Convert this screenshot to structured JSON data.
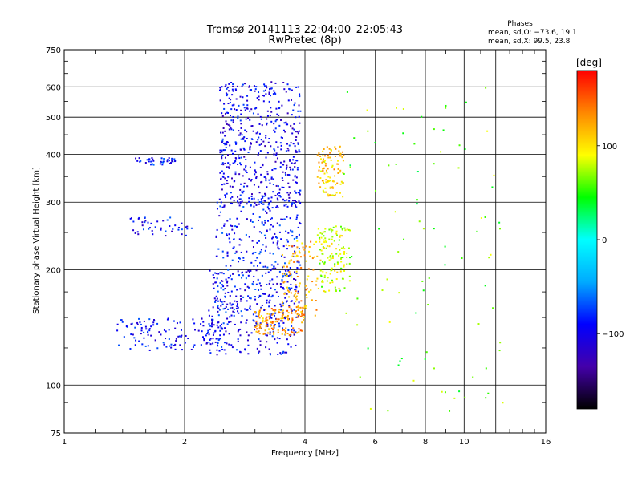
{
  "chart_data": {
    "type": "scatter",
    "title": "Tromsø 20141113 22:04:00–22:05:43",
    "subtitle": "RwPretec (8p)",
    "xlabel": "Frequency [MHz]",
    "ylabel": "Stationary phase Virtual Height [km]",
    "x_scale": "log",
    "y_scale": "log",
    "xlim": [
      1,
      16
    ],
    "ylim": [
      75,
      750
    ],
    "xticks": [
      1,
      2,
      4,
      6,
      8,
      10,
      16
    ],
    "xtick_labels": [
      "1",
      "2",
      "4",
      "6",
      "8",
      "10",
      "16"
    ],
    "xgrid": [
      2,
      4,
      6,
      8,
      10,
      12
    ],
    "yticks": [
      75,
      100,
      200,
      300,
      400,
      500,
      600,
      750
    ],
    "ytick_labels": [
      "75",
      "100",
      "200",
      "300",
      "400",
      "500",
      "600",
      "750"
    ],
    "grid": true,
    "phase_stats": {
      "heading": "Phases",
      "o_line": "mean, sd,O: −73.6, 19.1",
      "x_line": "mean, sd,X:  99.5, 23.8"
    },
    "colorbar": {
      "label": "[deg]",
      "range": [
        -180,
        180
      ],
      "ticks": [
        100,
        0,
        -100
      ],
      "tick_labels": [
        "100",
        "0",
        "−100"
      ],
      "colormap": [
        "#000000",
        "#4400aa",
        "#0000ff",
        "#00aaff",
        "#00ffff",
        "#00ff00",
        "#ffff00",
        "#ff8800",
        "#ff0000"
      ]
    },
    "series": [
      {
        "color_rule": "phase",
        "clusters": [
          {
            "desc": "low-frequency O trace",
            "xrange": [
              1.35,
              2.6
            ],
            "yrange": [
              123,
              150
            ],
            "phase": -90,
            "n": 140
          },
          {
            "desc": "O trace lower",
            "xrange": [
              2.3,
              3.8
            ],
            "yrange": [
              120,
              200
            ],
            "phase": -95,
            "n": 260
          },
          {
            "desc": "O trace mid band",
            "xrange": [
              2.4,
              3.9
            ],
            "yrange": [
              150,
              320
            ],
            "phase": -90,
            "n": 320
          },
          {
            "desc": "O trace upper band",
            "xrange": [
              2.45,
              3.9
            ],
            "yrange": [
              290,
              620
            ],
            "phase": -100,
            "n": 520
          },
          {
            "desc": "O cluster near 380 km",
            "xrange": [
              1.5,
              1.9
            ],
            "yrange": [
              375,
              392
            ],
            "phase": -90,
            "n": 40
          },
          {
            "desc": "O cluster near 260 km",
            "xrange": [
              1.45,
              2.1
            ],
            "yrange": [
              245,
              275
            ],
            "phase": -95,
            "n": 45
          },
          {
            "desc": "X trace lower",
            "xrange": [
              3.0,
              4.0
            ],
            "yrange": [
              135,
              160
            ],
            "phase": 130,
            "n": 130
          },
          {
            "desc": "X trace mid",
            "xrange": [
              3.5,
              4.3
            ],
            "yrange": [
              150,
              240
            ],
            "phase": 120,
            "n": 110
          },
          {
            "desc": "X trace near 210 km",
            "xrange": [
              4.3,
              5.2
            ],
            "yrange": [
              175,
              260
            ],
            "phase": 80,
            "n": 140
          },
          {
            "desc": "X trace near 350 km",
            "xrange": [
              4.3,
              5.0
            ],
            "yrange": [
              310,
              420
            ],
            "phase": 110,
            "n": 110
          },
          {
            "desc": "sparse points",
            "xrange": [
              5.0,
              12.5
            ],
            "yrange": [
              85,
              600
            ],
            "phase": 60,
            "n": 90
          }
        ]
      }
    ]
  }
}
